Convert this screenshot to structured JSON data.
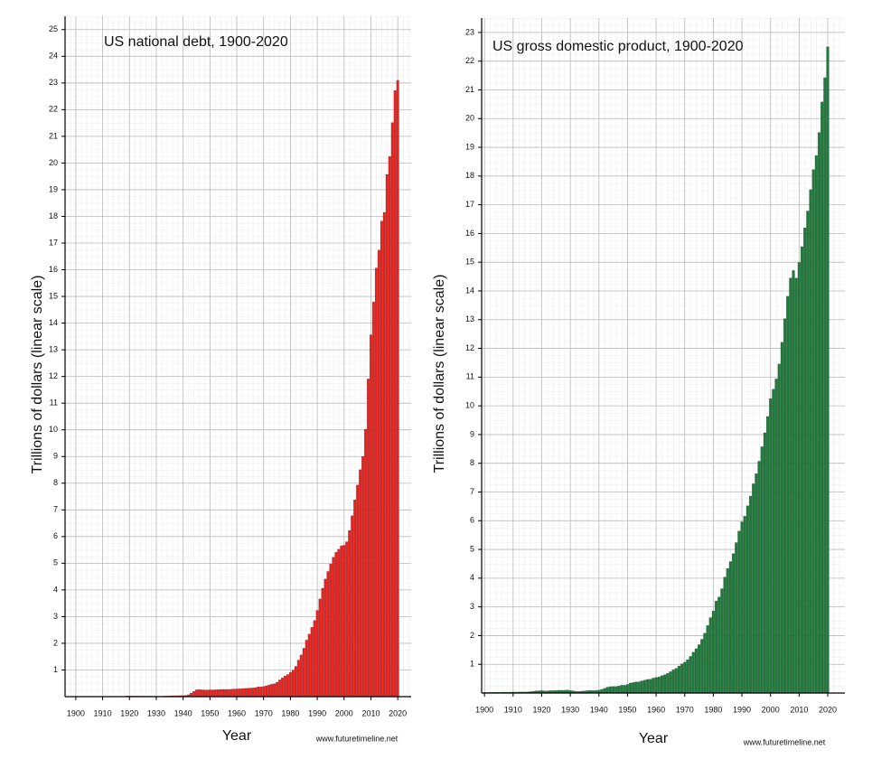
{
  "chart_data": [
    {
      "type": "bar",
      "title": "US national debt, 1900-2020",
      "ylabel": "Trillions of dollars (linear scale)",
      "xlabel": "Year",
      "source": "www.futuretimeline.net",
      "color": "#e8231f",
      "grid": true,
      "x": [
        1900,
        1901,
        1902,
        1903,
        1904,
        1905,
        1906,
        1907,
        1908,
        1909,
        1910,
        1911,
        1912,
        1913,
        1914,
        1915,
        1916,
        1917,
        1918,
        1919,
        1920,
        1921,
        1922,
        1923,
        1924,
        1925,
        1926,
        1927,
        1928,
        1929,
        1930,
        1931,
        1932,
        1933,
        1934,
        1935,
        1936,
        1937,
        1938,
        1939,
        1940,
        1941,
        1942,
        1943,
        1944,
        1945,
        1946,
        1947,
        1948,
        1949,
        1950,
        1951,
        1952,
        1953,
        1954,
        1955,
        1956,
        1957,
        1958,
        1959,
        1960,
        1961,
        1962,
        1963,
        1964,
        1965,
        1966,
        1967,
        1968,
        1969,
        1970,
        1971,
        1972,
        1973,
        1974,
        1975,
        1976,
        1977,
        1978,
        1979,
        1980,
        1981,
        1982,
        1983,
        1984,
        1985,
        1986,
        1987,
        1988,
        1989,
        1990,
        1991,
        1992,
        1993,
        1994,
        1995,
        1996,
        1997,
        1998,
        1999,
        2000,
        2001,
        2002,
        2003,
        2004,
        2005,
        2006,
        2007,
        2008,
        2009,
        2010,
        2011,
        2012,
        2013,
        2014,
        2015,
        2016,
        2017,
        2018,
        2019,
        2020
      ],
      "values": [
        0.001,
        0.001,
        0.001,
        0.001,
        0.001,
        0.001,
        0.001,
        0.001,
        0.001,
        0.001,
        0.001,
        0.001,
        0.001,
        0.001,
        0.001,
        0.001,
        0.001,
        0.003,
        0.012,
        0.025,
        0.024,
        0.024,
        0.023,
        0.022,
        0.021,
        0.021,
        0.02,
        0.019,
        0.018,
        0.017,
        0.016,
        0.017,
        0.019,
        0.023,
        0.027,
        0.029,
        0.034,
        0.036,
        0.037,
        0.04,
        0.043,
        0.049,
        0.072,
        0.137,
        0.201,
        0.259,
        0.269,
        0.258,
        0.252,
        0.253,
        0.257,
        0.255,
        0.259,
        0.266,
        0.271,
        0.274,
        0.273,
        0.272,
        0.28,
        0.287,
        0.291,
        0.293,
        0.303,
        0.31,
        0.316,
        0.322,
        0.328,
        0.34,
        0.368,
        0.366,
        0.381,
        0.408,
        0.436,
        0.466,
        0.484,
        0.542,
        0.629,
        0.706,
        0.777,
        0.829,
        0.909,
        0.995,
        1.137,
        1.372,
        1.565,
        1.817,
        2.121,
        2.346,
        2.602,
        2.857,
        3.233,
        3.665,
        4.065,
        4.411,
        4.693,
        4.974,
        5.225,
        5.413,
        5.526,
        5.656,
        5.674,
        5.807,
        6.228,
        6.783,
        7.379,
        7.933,
        8.507,
        9.008,
        10.025,
        11.91,
        13.562,
        14.79,
        16.066,
        16.738,
        17.824,
        18.151,
        19.573,
        20.245,
        21.516,
        22.719,
        23.1
      ],
      "xlim": [
        1896,
        2025
      ],
      "xticks": [
        1900,
        1910,
        1920,
        1930,
        1940,
        1950,
        1960,
        1970,
        1980,
        1990,
        2000,
        2010,
        2020
      ],
      "ylim": [
        0,
        25.5
      ],
      "yticks": [
        1,
        2,
        3,
        4,
        5,
        6,
        7,
        8,
        9,
        10,
        11,
        12,
        13,
        14,
        15,
        16,
        17,
        18,
        19,
        20,
        21,
        22,
        23,
        24,
        25
      ]
    },
    {
      "type": "bar",
      "title": "US gross domestic product, 1900-2020",
      "ylabel": "Trillions of dollars (linear scale)",
      "xlabel": "Year",
      "source": "www.futuretimeline.net",
      "color": "#1f7a3c",
      "grid": true,
      "x": [
        1900,
        1901,
        1902,
        1903,
        1904,
        1905,
        1906,
        1907,
        1908,
        1909,
        1910,
        1911,
        1912,
        1913,
        1914,
        1915,
        1916,
        1917,
        1918,
        1919,
        1920,
        1921,
        1922,
        1923,
        1924,
        1925,
        1926,
        1927,
        1928,
        1929,
        1930,
        1931,
        1932,
        1933,
        1934,
        1935,
        1936,
        1937,
        1938,
        1939,
        1940,
        1941,
        1942,
        1943,
        1944,
        1945,
        1946,
        1947,
        1948,
        1949,
        1950,
        1951,
        1952,
        1953,
        1954,
        1955,
        1956,
        1957,
        1958,
        1959,
        1960,
        1961,
        1962,
        1963,
        1964,
        1965,
        1966,
        1967,
        1968,
        1969,
        1970,
        1971,
        1972,
        1973,
        1974,
        1975,
        1976,
        1977,
        1978,
        1979,
        1980,
        1981,
        1982,
        1983,
        1984,
        1985,
        1986,
        1987,
        1988,
        1989,
        1990,
        1991,
        1992,
        1993,
        1994,
        1995,
        1996,
        1997,
        1998,
        1999,
        2000,
        2001,
        2002,
        2003,
        2004,
        2005,
        2006,
        2007,
        2008,
        2009,
        2010,
        2011,
        2012,
        2013,
        2014,
        2015,
        2016,
        2017,
        2018,
        2019,
        2020
      ],
      "values": [
        0.021,
        0.022,
        0.024,
        0.025,
        0.025,
        0.027,
        0.03,
        0.032,
        0.03,
        0.033,
        0.034,
        0.034,
        0.037,
        0.039,
        0.037,
        0.039,
        0.05,
        0.06,
        0.076,
        0.079,
        0.088,
        0.074,
        0.074,
        0.086,
        0.088,
        0.091,
        0.097,
        0.095,
        0.098,
        0.105,
        0.092,
        0.077,
        0.06,
        0.057,
        0.067,
        0.074,
        0.085,
        0.093,
        0.087,
        0.093,
        0.103,
        0.129,
        0.166,
        0.204,
        0.224,
        0.228,
        0.227,
        0.249,
        0.274,
        0.272,
        0.3,
        0.347,
        0.367,
        0.389,
        0.391,
        0.426,
        0.45,
        0.474,
        0.481,
        0.522,
        0.543,
        0.563,
        0.605,
        0.638,
        0.686,
        0.744,
        0.815,
        0.862,
        0.943,
        1.019,
        1.074,
        1.164,
        1.279,
        1.425,
        1.545,
        1.684,
        1.873,
        2.082,
        2.352,
        2.627,
        2.857,
        3.207,
        3.343,
        3.634,
        4.037,
        4.339,
        4.579,
        4.855,
        5.236,
        5.641,
        5.963,
        6.158,
        6.52,
        6.858,
        7.287,
        7.639,
        8.073,
        8.577,
        9.062,
        9.631,
        10.252,
        10.582,
        10.936,
        11.458,
        12.214,
        13.037,
        13.815,
        14.452,
        14.713,
        14.449,
        14.992,
        15.543,
        16.197,
        16.785,
        17.527,
        18.225,
        18.715,
        19.519,
        20.58,
        21.427,
        22.5
      ],
      "xlim": [
        1899,
        2026
      ],
      "xticks": [
        1900,
        1910,
        1920,
        1930,
        1940,
        1950,
        1960,
        1970,
        1980,
        1990,
        2000,
        2010,
        2020
      ],
      "ylim": [
        0,
        23.5
      ],
      "yticks": [
        1,
        2,
        3,
        4,
        5,
        6,
        7,
        8,
        9,
        10,
        11,
        12,
        13,
        14,
        15,
        16,
        17,
        18,
        19,
        20,
        21,
        22,
        23
      ]
    }
  ]
}
